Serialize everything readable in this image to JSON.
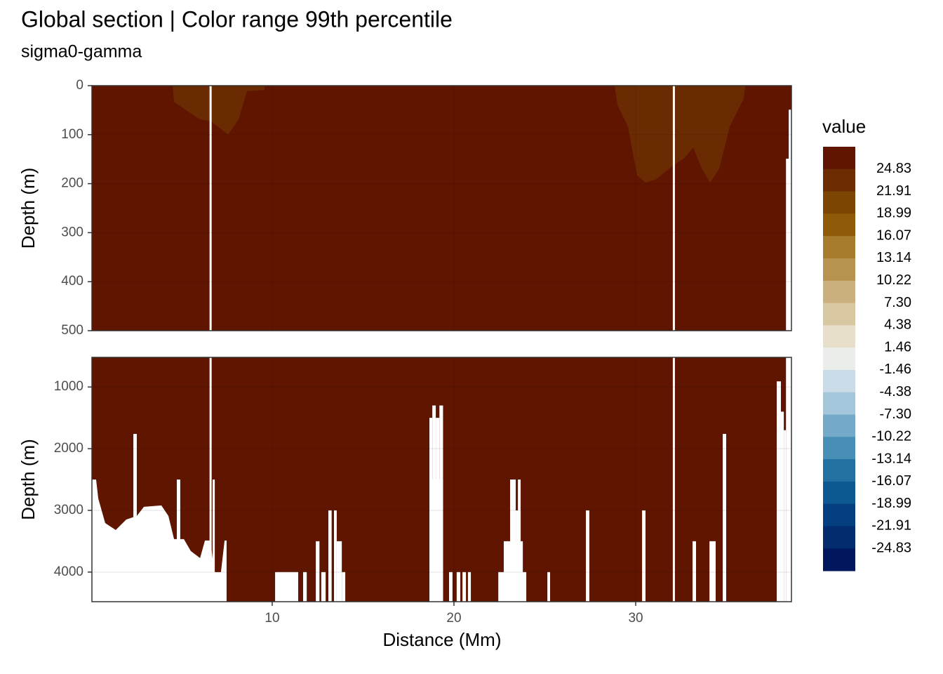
{
  "chart_data": {
    "type": "section",
    "title": "Global section | Color range 99th percentile",
    "subtitle": "sigma0-gamma",
    "x_label": "Distance (Mm)",
    "y_label": "Depth (m)",
    "xlim": [
      0.08,
      38.57
    ],
    "xticks": [
      10,
      20,
      30
    ],
    "field_color": "#5f1500",
    "missing_lines": [
      6.61,
      32.1
    ],
    "panels": [
      {
        "ylim": [
          0,
          500
        ],
        "yticks": [
          0,
          100,
          200,
          300,
          400,
          500
        ],
        "regions": [
          {
            "color": "#6b2b02",
            "x": [
              4.52,
              4.6,
              5.14,
              6.03,
              6.61,
              7.57,
              8.15,
              8.61,
              9.58,
              9.58
            ],
            "depth": [
              0,
              33,
              47,
              69,
              72,
              100,
              69,
              11,
              9,
              0
            ]
          },
          {
            "color": "#6b2b02",
            "x": [
              28.84,
              29.0,
              29.57,
              30.08,
              30.54,
              31.12,
              32.09,
              32.67,
              33.17,
              33.63,
              34.1,
              34.6,
              35.18,
              35.95,
              36.03
            ],
            "depth": [
              0,
              40,
              83,
              183,
              198,
              191,
              162,
              148,
              126,
              169,
              198,
              169,
              83,
              26,
              0
            ]
          }
        ],
        "blank_areas": [],
        "gaps": [
          {
            "x": [
              38.27,
              38.57
            ],
            "depth": 149
          },
          {
            "x": [
              38.42,
              38.57
            ],
            "depth": 49
          }
        ]
      },
      {
        "ylim": [
          520,
          4480
        ],
        "yticks": [
          1000,
          2000,
          3000,
          4000
        ],
        "regions": [],
        "blank_areas": [
          {
            "x": [
              0.08,
              0.31,
              0.43,
              0.81,
              1.39,
              1.97,
              2.55,
              2.94,
              3.9,
              4.29,
              4.6,
              5.14,
              5.52,
              6.03,
              6.3,
              6.61,
              6.8,
              7.18,
              7.38,
              7.49,
              7.49,
              0.08
            ],
            "depth": [
              2500,
              2500,
              2807,
              3205,
              3318,
              3148,
              3091,
              2943,
              2920,
              3091,
              3466,
              3466,
              3659,
              3773,
              3489,
              3489,
              4000,
              4000,
              3489,
              3489,
              4480,
              4480
            ]
          }
        ],
        "gaps": [
          {
            "x": [
              2.36,
              2.55
            ],
            "depth": 1761
          },
          {
            "x": [
              4.75,
              4.94
            ],
            "depth": 2500
          },
          {
            "x": [
              6.72,
              6.84
            ],
            "depth": 2500
          },
          {
            "x": [
              10.16,
              11.43
            ],
            "depth": 4000
          },
          {
            "x": [
              11.7,
              11.9
            ],
            "depth": 4000
          },
          {
            "x": [
              12.4,
              12.6
            ],
            "depth": 3500
          },
          {
            "x": [
              12.7,
              12.94
            ],
            "depth": 4000
          },
          {
            "x": [
              13.09,
              13.27
            ],
            "depth": 3000
          },
          {
            "x": [
              13.4,
              13.55
            ],
            "depth": 3000
          },
          {
            "x": [
              13.55,
              13.83
            ],
            "depth": 3500
          },
          {
            "x": [
              13.83,
              14.02
            ],
            "depth": 4000
          },
          {
            "x": [
              18.65,
              19.4
            ],
            "depth": 2500
          },
          {
            "x": [
              18.65,
              18.81
            ],
            "depth": 1500
          },
          {
            "x": [
              18.81,
              19.0
            ],
            "depth": 1300
          },
          {
            "x": [
              19.0,
              19.2
            ],
            "depth": 1500
          },
          {
            "x": [
              19.2,
              19.4
            ],
            "depth": 1300
          },
          {
            "x": [
              19.73,
              19.92
            ],
            "depth": 4000
          },
          {
            "x": [
              20.15,
              20.35
            ],
            "depth": 4000
          },
          {
            "x": [
              20.47,
              20.66
            ],
            "depth": 4000
          },
          {
            "x": [
              20.77,
              20.93
            ],
            "depth": 4000
          },
          {
            "x": [
              22.44,
              23.98
            ],
            "depth": 4000
          },
          {
            "x": [
              22.74,
              23.79
            ],
            "depth": 3500
          },
          {
            "x": [
              23.09,
              23.4
            ],
            "depth": 2500
          },
          {
            "x": [
              23.4,
              23.67
            ],
            "depth": 3000
          },
          {
            "x": [
              23.52,
              23.67
            ],
            "depth": 2500
          },
          {
            "x": [
              25.14,
              25.29
            ],
            "depth": 4000
          },
          {
            "x": [
              27.26,
              27.45
            ],
            "depth": 3000
          },
          {
            "x": [
              30.35,
              30.54
            ],
            "depth": 3000
          },
          {
            "x": [
              33.13,
              33.32
            ],
            "depth": 3500
          },
          {
            "x": [
              34.06,
              34.4
            ],
            "depth": 3500
          },
          {
            "x": [
              34.79,
              34.98
            ],
            "depth": 1761
          },
          {
            "x": [
              37.76,
              37.99
            ],
            "depth": 909
          },
          {
            "x": [
              37.99,
              38.15
            ],
            "depth": 1400
          },
          {
            "x": [
              38.15,
              38.27
            ],
            "depth": 1700
          },
          {
            "x": [
              38.27,
              38.57
            ],
            "depth": 520
          }
        ]
      }
    ],
    "legend": {
      "title": "value",
      "colors": [
        "#5f1500",
        "#6d2c02",
        "#7d4504",
        "#905b09",
        "#a77c2c",
        "#b8934f",
        "#c9b07c",
        "#d9c7a1",
        "#e8dfcb",
        "#ebedea",
        "#c9dce8",
        "#a3c6da",
        "#74a9c9",
        "#478fb5",
        "#2271a1",
        "#0d5890",
        "#043f7f",
        "#022c6e",
        "#00175e"
      ],
      "breaks": [
        24.83,
        21.91,
        18.99,
        16.07,
        13.14,
        10.22,
        {
          "value": 7.3,
          "label": "7.30"
        },
        4.38,
        1.46,
        -1.46,
        -4.38,
        {
          "value": -7.3,
          "label": "-7.30"
        },
        -10.22,
        -13.14,
        -16.07,
        -18.99,
        -21.91,
        -24.83
      ]
    }
  }
}
